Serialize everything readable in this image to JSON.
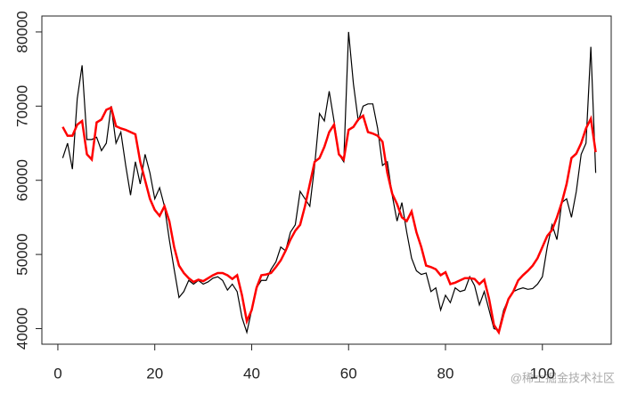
{
  "chart_data": {
    "type": "line",
    "x": [
      1,
      2,
      3,
      4,
      5,
      6,
      7,
      8,
      9,
      10,
      11,
      12,
      13,
      14,
      15,
      16,
      17,
      18,
      19,
      20,
      21,
      22,
      23,
      24,
      25,
      26,
      27,
      28,
      29,
      30,
      31,
      32,
      33,
      34,
      35,
      36,
      37,
      38,
      39,
      40,
      41,
      42,
      43,
      44,
      45,
      46,
      47,
      48,
      49,
      50,
      51,
      52,
      53,
      54,
      55,
      56,
      57,
      58,
      59,
      60,
      61,
      62,
      63,
      64,
      65,
      66,
      67,
      68,
      69,
      70,
      71,
      72,
      73,
      74,
      75,
      76,
      77,
      78,
      79,
      80,
      81,
      82,
      83,
      84,
      85,
      86,
      87,
      88,
      89,
      90,
      91,
      92,
      93,
      94,
      95,
      96,
      97,
      98,
      99,
      100,
      101,
      102,
      103,
      104,
      105,
      106,
      107,
      108,
      109,
      110,
      111
    ],
    "series": [
      {
        "color": "#000000",
        "values": [
          63000,
          65000,
          61500,
          71000,
          75500,
          65500,
          65500,
          65800,
          64000,
          65000,
          70000,
          65000,
          66500,
          62000,
          58000,
          62500,
          59500,
          63500,
          61000,
          57500,
          59000,
          56500,
          52000,
          48000,
          44200,
          45000,
          46500,
          46000,
          46500,
          46000,
          46300,
          46800,
          47000,
          46500,
          45200,
          46000,
          45000,
          41500,
          39500,
          42500,
          45500,
          46500,
          46500,
          48000,
          49000,
          51000,
          50500,
          53000,
          54000,
          58500,
          57500,
          56500,
          62000,
          69000,
          68000,
          72000,
          68000,
          63500,
          62500,
          80000,
          73000,
          68000,
          70000,
          70300,
          70300,
          67000,
          62000,
          62500,
          58000,
          54500,
          57000,
          53000,
          49500,
          47800,
          47300,
          47500,
          45000,
          45500,
          42500,
          44500,
          43500,
          45500,
          45000,
          45200,
          47000,
          45800,
          43200,
          45000,
          42500,
          40000,
          39800,
          42500,
          44000,
          45000,
          45300,
          45500,
          45300,
          45400,
          46000,
          47000,
          51000,
          54000,
          52000,
          57000,
          57500,
          55000,
          58500,
          63500,
          65000,
          78000,
          61000
        ]
      },
      {
        "color": "#ff0000",
        "values": [
          67200,
          66000,
          66000,
          67500,
          68000,
          63500,
          62800,
          67800,
          68200,
          69500,
          69800,
          67300,
          67000,
          66800,
          66500,
          66200,
          62500,
          60000,
          57500,
          56000,
          55200,
          56500,
          54500,
          51000,
          48500,
          47500,
          46800,
          46300,
          46600,
          46400,
          46800,
          47200,
          47500,
          47500,
          47200,
          46700,
          47200,
          44500,
          41000,
          42500,
          45500,
          47200,
          47300,
          47500,
          48300,
          49200,
          50500,
          52000,
          53200,
          54000,
          56500,
          59500,
          62500,
          63000,
          64500,
          66500,
          67500,
          63500,
          62800,
          66800,
          67200,
          68200,
          68700,
          66500,
          66300,
          66000,
          65200,
          61000,
          58200,
          56800,
          55000,
          54500,
          55800,
          53000,
          51000,
          48500,
          48300,
          48000,
          47200,
          47600,
          46000,
          46200,
          46500,
          46800,
          46800,
          46700,
          46000,
          46600,
          44000,
          40500,
          39500,
          42000,
          44000,
          45000,
          46500,
          47200,
          47800,
          48500,
          49500,
          51000,
          52500,
          53300,
          55000,
          57000,
          59500,
          63000,
          63600,
          65000,
          67000,
          68300,
          63800
        ]
      }
    ],
    "xlim": [
      -3.3,
      114.2
    ],
    "ylim": [
      37900,
      82150
    ],
    "xticks": [
      0,
      20,
      40,
      60,
      80,
      100
    ],
    "yticks": [
      40000,
      50000,
      60000,
      70000,
      80000
    ]
  },
  "watermark": "@稀土掘金技术社区"
}
